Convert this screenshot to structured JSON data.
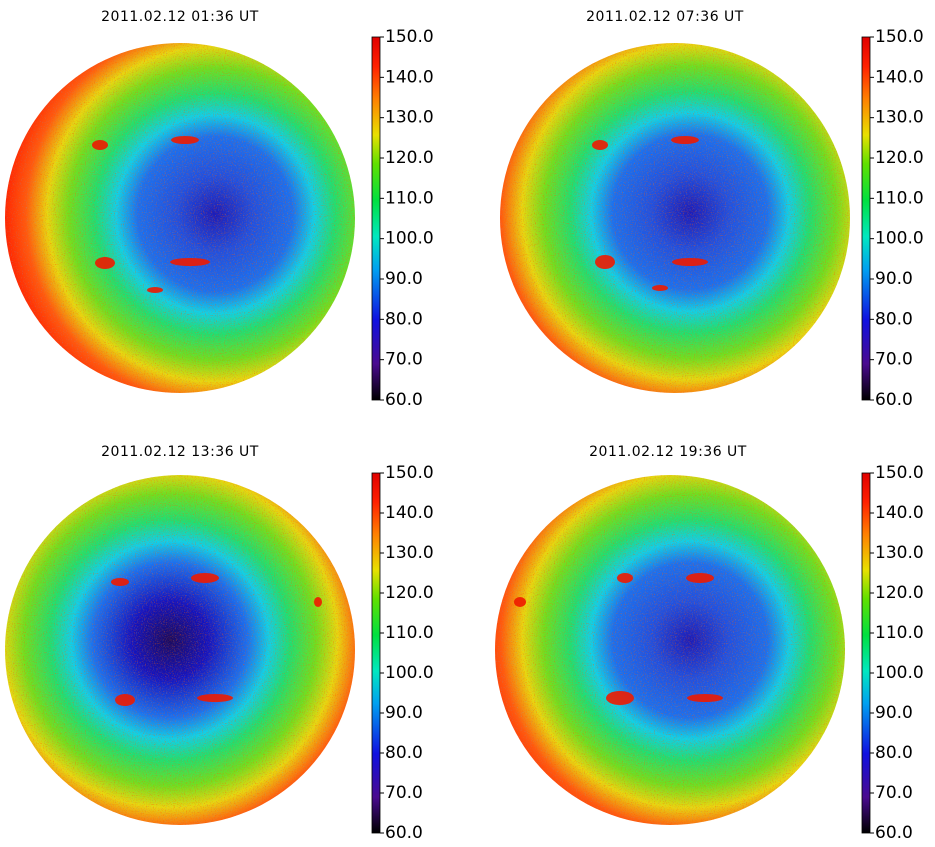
{
  "chart_data": [
    {
      "type": "heatmap",
      "title": "2011.02.12  01:36  UT",
      "clim": [
        60,
        150
      ],
      "cticks": [
        {
          "value": 60,
          "label": "60.0"
        },
        {
          "value": 70,
          "label": "70.0"
        },
        {
          "value": 80,
          "label": "80.0"
        },
        {
          "value": 90,
          "label": "90.0"
        },
        {
          "value": 100,
          "label": "100.0"
        },
        {
          "value": 110,
          "label": "110.0"
        },
        {
          "value": 120,
          "label": "120.0"
        },
        {
          "value": 130,
          "label": "130.0"
        },
        {
          "value": 140,
          "label": "140.0"
        },
        {
          "value": 150,
          "label": "150.0"
        }
      ]
    },
    {
      "type": "heatmap",
      "title": "2011.02.12  07:36  UT",
      "clim": [
        60,
        150
      ],
      "cticks": [
        {
          "value": 60,
          "label": "60.0"
        },
        {
          "value": 70,
          "label": "70.0"
        },
        {
          "value": 80,
          "label": "80.0"
        },
        {
          "value": 90,
          "label": "90.0"
        },
        {
          "value": 100,
          "label": "100.0"
        },
        {
          "value": 110,
          "label": "110.0"
        },
        {
          "value": 120,
          "label": "120.0"
        },
        {
          "value": 130,
          "label": "130.0"
        },
        {
          "value": 140,
          "label": "140.0"
        },
        {
          "value": 150,
          "label": "150.0"
        }
      ]
    },
    {
      "type": "heatmap",
      "title": "2011.02.12  13:36  UT",
      "clim": [
        60,
        150
      ],
      "cticks": [
        {
          "value": 60,
          "label": "60.0"
        },
        {
          "value": 70,
          "label": "70.0"
        },
        {
          "value": 80,
          "label": "80.0"
        },
        {
          "value": 90,
          "label": "90.0"
        },
        {
          "value": 100,
          "label": "100.0"
        },
        {
          "value": 110,
          "label": "110.0"
        },
        {
          "value": 120,
          "label": "120.0"
        },
        {
          "value": 130,
          "label": "130.0"
        },
        {
          "value": 140,
          "label": "140.0"
        },
        {
          "value": 150,
          "label": "150.0"
        }
      ]
    },
    {
      "type": "heatmap",
      "title": "2011.02.12  19:36  UT",
      "clim": [
        60,
        150
      ],
      "cticks": [
        {
          "value": 60,
          "label": "60.0"
        },
        {
          "value": 70,
          "label": "70.0"
        },
        {
          "value": 80,
          "label": "80.0"
        },
        {
          "value": 90,
          "label": "90.0"
        },
        {
          "value": 100,
          "label": "100.0"
        },
        {
          "value": 110,
          "label": "110.0"
        },
        {
          "value": 120,
          "label": "120.0"
        },
        {
          "value": 130,
          "label": "130.0"
        },
        {
          "value": 140,
          "label": "140.0"
        },
        {
          "value": 150,
          "label": "150.0"
        }
      ]
    }
  ]
}
